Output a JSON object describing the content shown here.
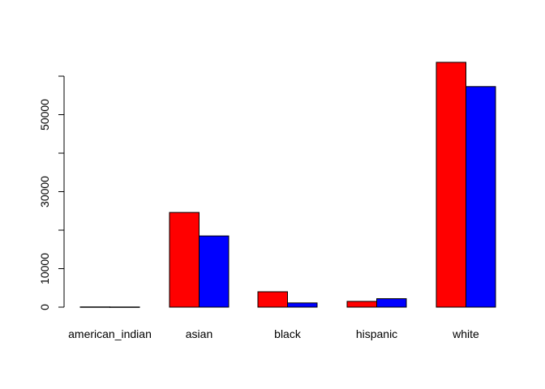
{
  "chart_data": {
    "type": "bar",
    "categories": [
      "american_indian",
      "asian",
      "black",
      "hispanic",
      "white"
    ],
    "series": [
      {
        "color": "#ff0000",
        "values": [
          60,
          24600,
          4000,
          1500,
          63600
        ]
      },
      {
        "color": "#0000ff",
        "values": [
          40,
          18500,
          1100,
          2200,
          57300
        ]
      }
    ],
    "title": "",
    "xlabel": "",
    "ylabel": "",
    "ylim": [
      0,
      65000
    ],
    "yticks": [
      0,
      10000,
      20000,
      30000,
      40000,
      50000,
      60000
    ],
    "ytick_labels": [
      "0",
      "10000",
      "",
      "30000",
      "",
      "50000",
      ""
    ],
    "grid": false,
    "legend": false
  }
}
